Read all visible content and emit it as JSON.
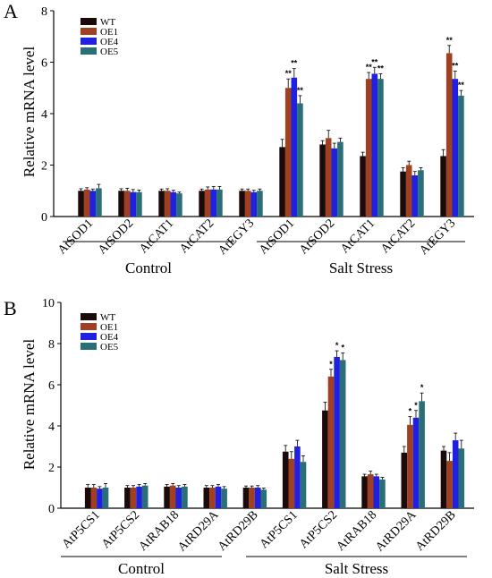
{
  "chart_data": [
    {
      "panel": "A",
      "type": "bar",
      "ylabel": "Relative mRNA level",
      "ylim": [
        0,
        8
      ],
      "yticks": [
        "0",
        "2",
        "4",
        "6",
        "8"
      ],
      "categories": [
        "AtSOD1",
        "AtSOD2",
        "AtCAT1",
        "AtCAT2",
        "AtEGY3",
        "AtSOD1",
        "AtSOD2",
        "AtCAT1",
        "AtCAT2",
        "AtEGY3"
      ],
      "groups": [
        {
          "label": "Control",
          "category_count": 5
        },
        {
          "label": "Salt Stress",
          "category_count": 5
        }
      ],
      "series": [
        {
          "name": "WT",
          "color": "#1a0a0a",
          "values": [
            1.0,
            1.0,
            1.0,
            1.0,
            1.0,
            2.7,
            2.8,
            2.35,
            1.75,
            2.35
          ],
          "errors": [
            0.08,
            0.08,
            0.07,
            0.07,
            0.07,
            0.3,
            0.15,
            0.15,
            0.15,
            0.25
          ]
        },
        {
          "name": "OE1",
          "color": "#a04020",
          "values": [
            1.05,
            1.0,
            1.0,
            1.05,
            1.0,
            5.0,
            3.05,
            5.35,
            2.0,
            6.35
          ],
          "errors": [
            0.07,
            0.1,
            0.08,
            0.1,
            0.07,
            0.35,
            0.3,
            0.25,
            0.15,
            0.3
          ]
        },
        {
          "name": "OE4",
          "color": "#2020e0",
          "values": [
            1.0,
            0.95,
            0.95,
            1.05,
            0.95,
            5.4,
            2.65,
            5.55,
            1.6,
            5.35
          ],
          "errors": [
            0.07,
            0.1,
            0.07,
            0.12,
            0.07,
            0.35,
            0.2,
            0.25,
            0.15,
            0.3
          ]
        },
        {
          "name": "OE5",
          "color": "#2a6e78",
          "values": [
            1.1,
            0.95,
            0.9,
            1.05,
            1.0,
            4.4,
            2.9,
            5.35,
            1.8,
            4.7
          ],
          "errors": [
            0.15,
            0.08,
            0.05,
            0.12,
            0.07,
            0.3,
            0.15,
            0.2,
            0.1,
            0.2
          ]
        }
      ],
      "significance": [
        {
          "category_index": 5,
          "series_index": 1,
          "mark": "**"
        },
        {
          "category_index": 5,
          "series_index": 2,
          "mark": "**"
        },
        {
          "category_index": 5,
          "series_index": 3,
          "mark": "**"
        },
        {
          "category_index": 7,
          "series_index": 1,
          "mark": "**"
        },
        {
          "category_index": 7,
          "series_index": 2,
          "mark": "**"
        },
        {
          "category_index": 7,
          "series_index": 3,
          "mark": "**"
        },
        {
          "category_index": 9,
          "series_index": 1,
          "mark": "**"
        },
        {
          "category_index": 9,
          "series_index": 2,
          "mark": "**"
        },
        {
          "category_index": 9,
          "series_index": 3,
          "mark": "**"
        }
      ],
      "legend_position": "top-left"
    },
    {
      "panel": "B",
      "type": "bar",
      "ylabel": "Relative mRNA level",
      "ylim": [
        0,
        10
      ],
      "yticks": [
        "0",
        "2",
        "4",
        "6",
        "8",
        "10"
      ],
      "categories": [
        "AtP5CS1",
        "AtP5CS2",
        "AtRAB18",
        "AtRD29A",
        "AtRD29B",
        "AtP5CS1",
        "AtP5CS2",
        "AtRAB18",
        "AtRD29A",
        "AtRD29B"
      ],
      "groups": [
        {
          "label": "Control",
          "category_count": 5
        },
        {
          "label": "Salt Stress",
          "category_count": 5
        }
      ],
      "series": [
        {
          "name": "WT",
          "color": "#1a0a0a",
          "values": [
            1.0,
            1.0,
            1.05,
            1.0,
            1.0,
            2.75,
            4.75,
            1.55,
            2.7,
            2.8
          ],
          "errors": [
            0.15,
            0.1,
            0.1,
            0.1,
            0.08,
            0.3,
            0.4,
            0.1,
            0.3,
            0.2
          ]
        },
        {
          "name": "OE1",
          "color": "#a04020",
          "values": [
            1.0,
            1.0,
            1.1,
            1.0,
            1.0,
            2.4,
            6.4,
            1.65,
            4.05,
            2.3
          ],
          "errors": [
            0.15,
            0.1,
            0.1,
            0.1,
            0.08,
            0.35,
            0.35,
            0.15,
            0.4,
            0.4
          ]
        },
        {
          "name": "OE4",
          "color": "#2020e0",
          "values": [
            0.95,
            1.05,
            1.0,
            1.05,
            1.0,
            3.0,
            7.35,
            1.55,
            4.4,
            3.3
          ],
          "errors": [
            0.1,
            0.1,
            0.1,
            0.1,
            0.1,
            0.3,
            0.3,
            0.1,
            0.35,
            0.35
          ]
        },
        {
          "name": "OE5",
          "color": "#2a6e78",
          "values": [
            1.0,
            1.1,
            1.05,
            0.95,
            0.9,
            2.25,
            7.2,
            1.4,
            5.2,
            2.9
          ],
          "errors": [
            0.2,
            0.1,
            0.1,
            0.1,
            0.08,
            0.3,
            0.35,
            0.1,
            0.4,
            0.4
          ]
        }
      ],
      "significance": [
        {
          "category_index": 6,
          "series_index": 1,
          "mark": "*"
        },
        {
          "category_index": 6,
          "series_index": 2,
          "mark": "*"
        },
        {
          "category_index": 6,
          "series_index": 3,
          "mark": "*"
        },
        {
          "category_index": 8,
          "series_index": 1,
          "mark": "*"
        },
        {
          "category_index": 8,
          "series_index": 2,
          "mark": "*"
        },
        {
          "category_index": 8,
          "series_index": 3,
          "mark": "*"
        }
      ],
      "legend_position": "top-left"
    }
  ]
}
